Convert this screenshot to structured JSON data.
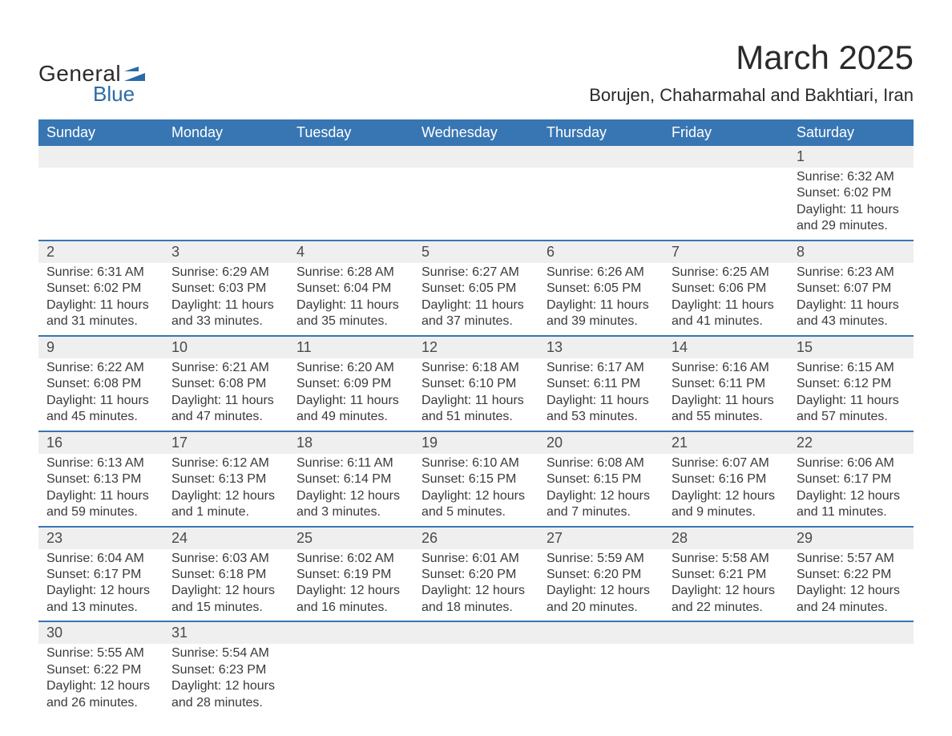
{
  "logo": {
    "word1": "General",
    "word2": "Blue",
    "word1_color": "#2a2a2a",
    "word2_color": "#2b6aa8",
    "flag_color": "#2b6aa8"
  },
  "header": {
    "month_title": "March 2025",
    "location": "Borujen, Chaharmahal and Bakhtiari, Iran"
  },
  "style": {
    "header_bg": "#3876b3",
    "header_text": "#ffffff",
    "daynum_bg": "#efefef",
    "row_border": "#3876b3",
    "body_text": "#3a3a3a",
    "daynum_text": "#4a4a4a",
    "page_bg": "#ffffff",
    "title_fontsize": 42,
    "location_fontsize": 22,
    "weekday_fontsize": 18,
    "daynum_fontsize": 18,
    "cell_fontsize": 16
  },
  "weekdays": [
    "Sunday",
    "Monday",
    "Tuesday",
    "Wednesday",
    "Thursday",
    "Friday",
    "Saturday"
  ],
  "weeks": [
    [
      null,
      null,
      null,
      null,
      null,
      null,
      {
        "n": "1",
        "sr": "Sunrise: 6:32 AM",
        "ss": "Sunset: 6:02 PM",
        "dl": "Daylight: 11 hours and 29 minutes."
      }
    ],
    [
      {
        "n": "2",
        "sr": "Sunrise: 6:31 AM",
        "ss": "Sunset: 6:02 PM",
        "dl": "Daylight: 11 hours and 31 minutes."
      },
      {
        "n": "3",
        "sr": "Sunrise: 6:29 AM",
        "ss": "Sunset: 6:03 PM",
        "dl": "Daylight: 11 hours and 33 minutes."
      },
      {
        "n": "4",
        "sr": "Sunrise: 6:28 AM",
        "ss": "Sunset: 6:04 PM",
        "dl": "Daylight: 11 hours and 35 minutes."
      },
      {
        "n": "5",
        "sr": "Sunrise: 6:27 AM",
        "ss": "Sunset: 6:05 PM",
        "dl": "Daylight: 11 hours and 37 minutes."
      },
      {
        "n": "6",
        "sr": "Sunrise: 6:26 AM",
        "ss": "Sunset: 6:05 PM",
        "dl": "Daylight: 11 hours and 39 minutes."
      },
      {
        "n": "7",
        "sr": "Sunrise: 6:25 AM",
        "ss": "Sunset: 6:06 PM",
        "dl": "Daylight: 11 hours and 41 minutes."
      },
      {
        "n": "8",
        "sr": "Sunrise: 6:23 AM",
        "ss": "Sunset: 6:07 PM",
        "dl": "Daylight: 11 hours and 43 minutes."
      }
    ],
    [
      {
        "n": "9",
        "sr": "Sunrise: 6:22 AM",
        "ss": "Sunset: 6:08 PM",
        "dl": "Daylight: 11 hours and 45 minutes."
      },
      {
        "n": "10",
        "sr": "Sunrise: 6:21 AM",
        "ss": "Sunset: 6:08 PM",
        "dl": "Daylight: 11 hours and 47 minutes."
      },
      {
        "n": "11",
        "sr": "Sunrise: 6:20 AM",
        "ss": "Sunset: 6:09 PM",
        "dl": "Daylight: 11 hours and 49 minutes."
      },
      {
        "n": "12",
        "sr": "Sunrise: 6:18 AM",
        "ss": "Sunset: 6:10 PM",
        "dl": "Daylight: 11 hours and 51 minutes."
      },
      {
        "n": "13",
        "sr": "Sunrise: 6:17 AM",
        "ss": "Sunset: 6:11 PM",
        "dl": "Daylight: 11 hours and 53 minutes."
      },
      {
        "n": "14",
        "sr": "Sunrise: 6:16 AM",
        "ss": "Sunset: 6:11 PM",
        "dl": "Daylight: 11 hours and 55 minutes."
      },
      {
        "n": "15",
        "sr": "Sunrise: 6:15 AM",
        "ss": "Sunset: 6:12 PM",
        "dl": "Daylight: 11 hours and 57 minutes."
      }
    ],
    [
      {
        "n": "16",
        "sr": "Sunrise: 6:13 AM",
        "ss": "Sunset: 6:13 PM",
        "dl": "Daylight: 11 hours and 59 minutes."
      },
      {
        "n": "17",
        "sr": "Sunrise: 6:12 AM",
        "ss": "Sunset: 6:13 PM",
        "dl": "Daylight: 12 hours and 1 minute."
      },
      {
        "n": "18",
        "sr": "Sunrise: 6:11 AM",
        "ss": "Sunset: 6:14 PM",
        "dl": "Daylight: 12 hours and 3 minutes."
      },
      {
        "n": "19",
        "sr": "Sunrise: 6:10 AM",
        "ss": "Sunset: 6:15 PM",
        "dl": "Daylight: 12 hours and 5 minutes."
      },
      {
        "n": "20",
        "sr": "Sunrise: 6:08 AM",
        "ss": "Sunset: 6:15 PM",
        "dl": "Daylight: 12 hours and 7 minutes."
      },
      {
        "n": "21",
        "sr": "Sunrise: 6:07 AM",
        "ss": "Sunset: 6:16 PM",
        "dl": "Daylight: 12 hours and 9 minutes."
      },
      {
        "n": "22",
        "sr": "Sunrise: 6:06 AM",
        "ss": "Sunset: 6:17 PM",
        "dl": "Daylight: 12 hours and 11 minutes."
      }
    ],
    [
      {
        "n": "23",
        "sr": "Sunrise: 6:04 AM",
        "ss": "Sunset: 6:17 PM",
        "dl": "Daylight: 12 hours and 13 minutes."
      },
      {
        "n": "24",
        "sr": "Sunrise: 6:03 AM",
        "ss": "Sunset: 6:18 PM",
        "dl": "Daylight: 12 hours and 15 minutes."
      },
      {
        "n": "25",
        "sr": "Sunrise: 6:02 AM",
        "ss": "Sunset: 6:19 PM",
        "dl": "Daylight: 12 hours and 16 minutes."
      },
      {
        "n": "26",
        "sr": "Sunrise: 6:01 AM",
        "ss": "Sunset: 6:20 PM",
        "dl": "Daylight: 12 hours and 18 minutes."
      },
      {
        "n": "27",
        "sr": "Sunrise: 5:59 AM",
        "ss": "Sunset: 6:20 PM",
        "dl": "Daylight: 12 hours and 20 minutes."
      },
      {
        "n": "28",
        "sr": "Sunrise: 5:58 AM",
        "ss": "Sunset: 6:21 PM",
        "dl": "Daylight: 12 hours and 22 minutes."
      },
      {
        "n": "29",
        "sr": "Sunrise: 5:57 AM",
        "ss": "Sunset: 6:22 PM",
        "dl": "Daylight: 12 hours and 24 minutes."
      }
    ],
    [
      {
        "n": "30",
        "sr": "Sunrise: 5:55 AM",
        "ss": "Sunset: 6:22 PM",
        "dl": "Daylight: 12 hours and 26 minutes."
      },
      {
        "n": "31",
        "sr": "Sunrise: 5:54 AM",
        "ss": "Sunset: 6:23 PM",
        "dl": "Daylight: 12 hours and 28 minutes."
      },
      null,
      null,
      null,
      null,
      null
    ]
  ]
}
